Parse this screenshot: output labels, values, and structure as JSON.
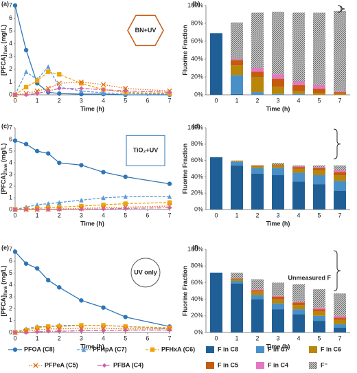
{
  "chart_data": [
    {
      "type": "line",
      "label": "(a)",
      "annotation": "BN+UV",
      "xlabel": "Time (h)",
      "ylabel": "[PFCA]",
      "ylabel_sub": "Tank",
      "ylabel_unit": " (mg/L)",
      "x": [
        0,
        0.5,
        1,
        1.5,
        2,
        3,
        4,
        5,
        7
      ],
      "xlim": [
        0,
        7
      ],
      "xticks": [
        0,
        1,
        2,
        3,
        4,
        5,
        6,
        7
      ],
      "ylim": [
        0,
        7
      ],
      "yticks": [
        0,
        1,
        2,
        3,
        4,
        5,
        6,
        7
      ],
      "series": [
        {
          "name": "PFOA (C8)",
          "color": "#2e75b6",
          "values": [
            7.0,
            3.5,
            0.9,
            0.2,
            0.1,
            0.05,
            0.05,
            0,
            0
          ]
        },
        {
          "name": "PFHpA (C7)",
          "color": "#5b9bd5",
          "values": [
            0,
            1.8,
            1.2,
            2.2,
            0.6,
            0.3,
            0.15,
            0.1,
            0.05
          ]
        },
        {
          "name": "PFHxA (C6)",
          "color": "#f0a30a",
          "values": [
            0,
            0.6,
            1.1,
            1.8,
            1.6,
            0.9,
            0.4,
            0.2,
            0.1
          ]
        },
        {
          "name": "PFPeA (C5)",
          "color": "#e46c0a",
          "values": [
            0,
            0.1,
            0.3,
            0.5,
            0.9,
            1.0,
            0.8,
            0.5,
            0.3
          ]
        },
        {
          "name": "PFBA (C4)",
          "color": "#d15fa5",
          "values": [
            0,
            0,
            0.1,
            0.3,
            0.5,
            0.5,
            0.4,
            0.3,
            0.2
          ]
        }
      ]
    },
    {
      "type": "bar",
      "label": "(b)",
      "xlabel": "Time (h)",
      "ylabel": "Fluorine Fraction",
      "categories": [
        "0",
        "1",
        "2",
        "3",
        "4",
        "5",
        "7"
      ],
      "ylim": [
        0,
        100
      ],
      "yticks": [
        {
          "value": 0,
          "label": "0%"
        },
        {
          "value": 20,
          "label": "20%"
        },
        {
          "value": 40,
          "label": "40%"
        },
        {
          "value": 60,
          "label": "60%"
        },
        {
          "value": 80,
          "label": "80%"
        },
        {
          "value": 100,
          "label": "100%"
        }
      ],
      "series": [
        {
          "name": "F in C8",
          "color": "#1f5f96",
          "values": [
            69,
            1,
            0,
            0,
            0,
            0,
            0
          ]
        },
        {
          "name": "F in C7",
          "color": "#4a90c8",
          "values": [
            0,
            21,
            3,
            1,
            1,
            0,
            0
          ]
        },
        {
          "name": "F in C6",
          "color": "#b8860b",
          "values": [
            0,
            11,
            17,
            8,
            3,
            2,
            1
          ]
        },
        {
          "name": "F in C5",
          "color": "#c55a11",
          "values": [
            0,
            6,
            6,
            9,
            7,
            5,
            2
          ]
        },
        {
          "name": "F in C4",
          "color": "#e377c2",
          "values": [
            0,
            1,
            4,
            5,
            4,
            4,
            1
          ]
        },
        {
          "name": "F⁻",
          "color": "#7f7f7f",
          "hatch": true,
          "values": [
            0,
            41,
            62,
            70,
            77,
            81,
            90
          ]
        }
      ]
    },
    {
      "type": "line",
      "label": "(c)",
      "annotation": "TiO₂+UV",
      "xlabel": "Time (h)",
      "ylabel": "[PFCA]",
      "ylabel_sub": "Tank",
      "ylabel_unit": " (mg/L)",
      "x": [
        0,
        0.5,
        1,
        1.5,
        2,
        3,
        4,
        5,
        7
      ],
      "xlim": [
        0,
        7
      ],
      "xticks": [
        0,
        1,
        2,
        3,
        4,
        5,
        6,
        7
      ],
      "ylim": [
        0,
        7
      ],
      "yticks": [
        0,
        1,
        2,
        3,
        4,
        5,
        6,
        7
      ],
      "series": [
        {
          "name": "PFOA (C8)",
          "color": "#2e75b6",
          "values": [
            5.9,
            5.6,
            5.0,
            4.8,
            4.0,
            3.8,
            3.2,
            2.8,
            2.2
          ]
        },
        {
          "name": "PFHpA (C7)",
          "color": "#5b9bd5",
          "values": [
            0,
            0.2,
            0.4,
            0.5,
            0.6,
            0.8,
            1.0,
            1.1,
            1.1
          ]
        },
        {
          "name": "PFHxA (C6)",
          "color": "#f0a30a",
          "values": [
            0,
            0.05,
            0.1,
            0.15,
            0.2,
            0.3,
            0.4,
            0.5,
            0.6
          ]
        },
        {
          "name": "PFPeA (C5)",
          "color": "#e46c0a",
          "values": [
            0,
            0,
            0,
            0.02,
            0.05,
            0.1,
            0.15,
            0.2,
            0.3
          ]
        },
        {
          "name": "PFBA (C4)",
          "color": "#d15fa5",
          "values": [
            0,
            0,
            0,
            0,
            0,
            0.02,
            0.05,
            0.1,
            0.15
          ]
        }
      ]
    },
    {
      "type": "bar",
      "label": "(d)",
      "xlabel": "Time (h)",
      "ylabel": "Fluorine Fraction",
      "categories": [
        "0",
        "1",
        "2",
        "3",
        "4",
        "5",
        "7"
      ],
      "ylim": [
        0,
        100
      ],
      "yticks": [
        {
          "value": 0,
          "label": "0%"
        },
        {
          "value": 20,
          "label": "20%"
        },
        {
          "value": 40,
          "label": "40%"
        },
        {
          "value": 60,
          "label": "60%"
        },
        {
          "value": 80,
          "label": "80%"
        },
        {
          "value": 100,
          "label": "100%"
        }
      ],
      "series": [
        {
          "name": "F in C8",
          "color": "#1f5f96",
          "values": [
            64,
            54,
            44,
            42,
            34,
            31,
            23
          ]
        },
        {
          "name": "F in C7",
          "color": "#4a90c8",
          "values": [
            0,
            4,
            7,
            9,
            11,
            11,
            12
          ]
        },
        {
          "name": "F in C6",
          "color": "#b8860b",
          "values": [
            0,
            1,
            2,
            3,
            5,
            6,
            7
          ]
        },
        {
          "name": "F in C5",
          "color": "#c55a11",
          "values": [
            0,
            0,
            1,
            1,
            2,
            3,
            4
          ]
        },
        {
          "name": "F in C4",
          "color": "#e377c2",
          "values": [
            0,
            0,
            0,
            0,
            1,
            1,
            2
          ]
        },
        {
          "name": "F⁻",
          "color": "#7f7f7f",
          "hatch": true,
          "values": [
            0,
            1,
            0,
            2,
            1,
            2,
            6
          ]
        }
      ]
    },
    {
      "type": "line",
      "label": "(e)",
      "annotation": "UV only",
      "xlabel": "Time (h)",
      "ylabel": "[PFCA]",
      "ylabel_sub": "Tank",
      "ylabel_unit": " (mg/L)",
      "x": [
        0,
        0.5,
        1,
        1.5,
        2,
        3,
        4,
        5,
        7
      ],
      "xlim": [
        0,
        7
      ],
      "xticks": [
        0,
        1,
        2,
        3,
        4,
        5,
        6,
        7
      ],
      "ylim": [
        0,
        7
      ],
      "yticks": [
        0,
        1,
        2,
        3,
        4,
        5,
        6,
        7
      ],
      "series": [
        {
          "name": "PFOA (C8)",
          "color": "#2e75b6",
          "values": [
            6.8,
            5.8,
            5.4,
            4.4,
            3.8,
            2.7,
            2.1,
            1.3,
            0.5
          ]
        },
        {
          "name": "PFHpA (C7)",
          "color": "#5b9bd5",
          "values": [
            0,
            0.3,
            0.5,
            0.5,
            0.6,
            0.6,
            0.6,
            0.5,
            0.3
          ]
        },
        {
          "name": "PFHxA (C6)",
          "color": "#f0a30a",
          "values": [
            0,
            0.2,
            0.4,
            0.5,
            0.5,
            0.6,
            0.6,
            0.5,
            0.4
          ]
        },
        {
          "name": "PFPeA (C5)",
          "color": "#e46c0a",
          "values": [
            0,
            0.1,
            0.2,
            0.3,
            0.3,
            0.35,
            0.35,
            0.3,
            0.3
          ]
        },
        {
          "name": "PFBA (C4)",
          "color": "#d15fa5",
          "values": [
            0,
            0,
            0.05,
            0.1,
            0.1,
            0.15,
            0.15,
            0.2,
            0.2
          ]
        }
      ]
    },
    {
      "type": "bar",
      "label": "(f)",
      "annotation": "Unmeasured F",
      "xlabel": "Time (h)",
      "ylabel": "Fluorine Fraction",
      "categories": [
        "0",
        "1",
        "2",
        "3",
        "4",
        "5",
        "7"
      ],
      "ylim": [
        0,
        100
      ],
      "yticks": [
        {
          "value": 0,
          "label": "0%"
        },
        {
          "value": 20,
          "label": "20%"
        },
        {
          "value": 40,
          "label": "40%"
        },
        {
          "value": 60,
          "label": "60%"
        },
        {
          "value": 80,
          "label": "80%"
        },
        {
          "value": 100,
          "label": "100%"
        }
      ],
      "series": [
        {
          "name": "F in C8",
          "color": "#1f5f96",
          "values": [
            72,
            59,
            40,
            28,
            22,
            14,
            6
          ]
        },
        {
          "name": "F in C7",
          "color": "#4a90c8",
          "values": [
            0,
            3,
            5,
            7,
            6,
            6,
            4
          ]
        },
        {
          "name": "F in C6",
          "color": "#b8860b",
          "values": [
            0,
            2,
            4,
            5,
            5,
            5,
            5
          ]
        },
        {
          "name": "F in C5",
          "color": "#c55a11",
          "values": [
            0,
            1,
            2,
            3,
            3,
            3,
            3
          ]
        },
        {
          "name": "F in C4",
          "color": "#e377c2",
          "values": [
            0,
            0,
            1,
            1,
            1,
            2,
            2
          ]
        },
        {
          "name": "F⁻",
          "color": "#7f7f7f",
          "hatch": true,
          "values": [
            0,
            7,
            12,
            16,
            21,
            22,
            27
          ]
        }
      ]
    }
  ]
}
